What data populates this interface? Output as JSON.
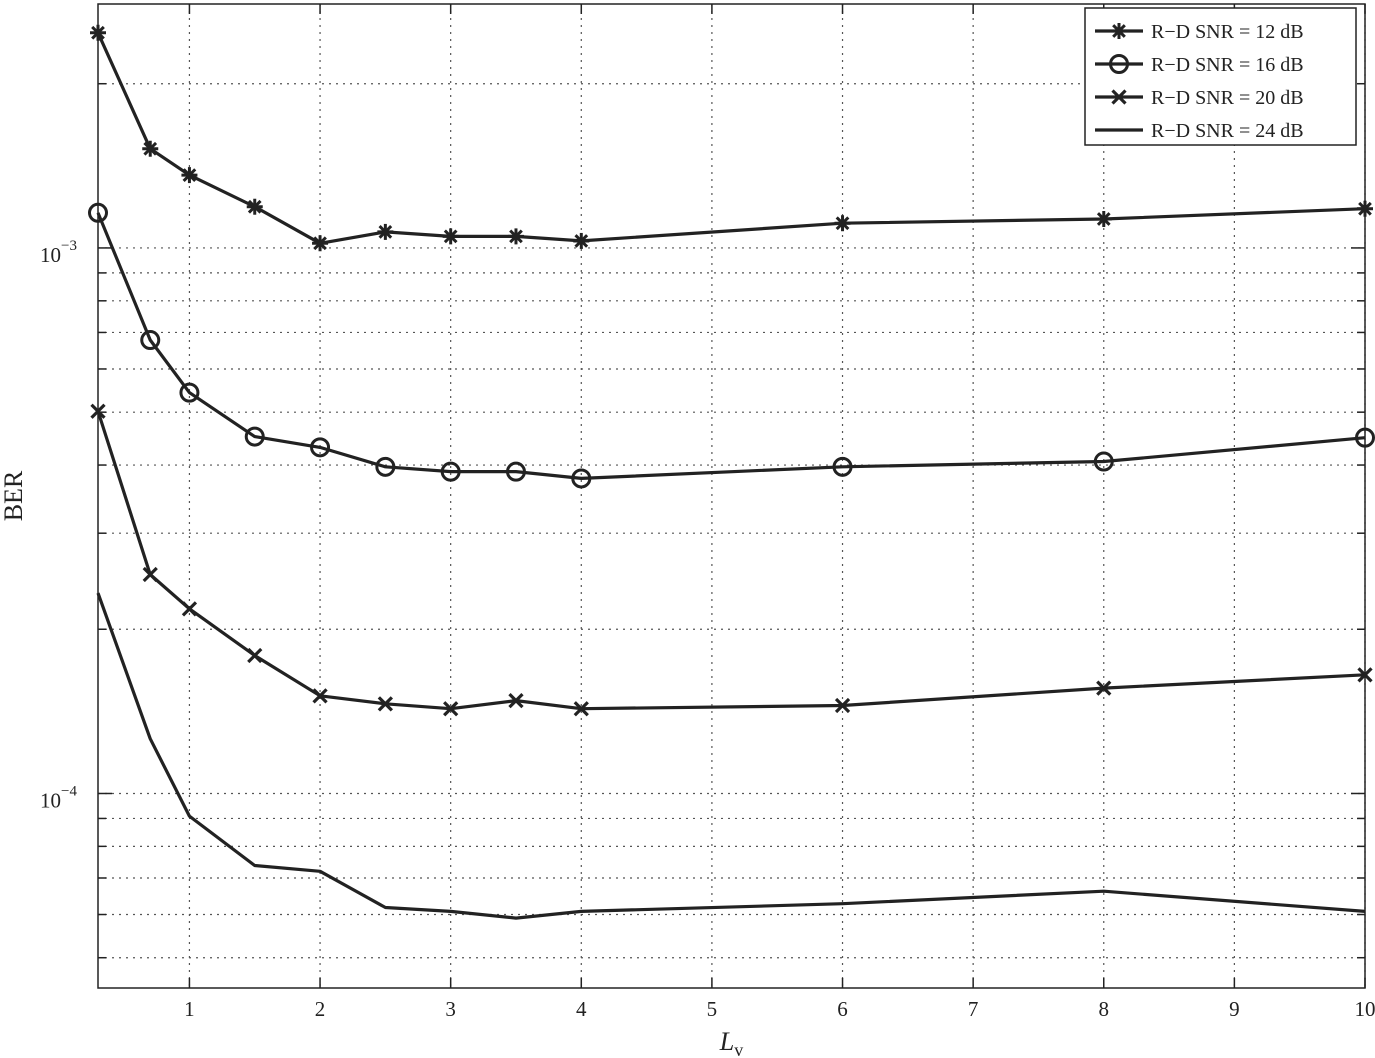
{
  "chart_data": {
    "type": "line",
    "xlabel": "L",
    "xlabel_sub": "v",
    "ylabel": "BER",
    "yscale": "log",
    "xlim": [
      0.3,
      10
    ],
    "ylim": [
      4.4e-05,
      0.0028
    ],
    "xticks": [
      1,
      2,
      3,
      4,
      5,
      6,
      7,
      8,
      9,
      10
    ],
    "ytick_labels": [
      {
        "value": 0.001,
        "base": "10",
        "exp": "−3"
      },
      {
        "value": 0.0001,
        "base": "10",
        "exp": "−4"
      }
    ],
    "grid": true,
    "grid_style": "dotted",
    "legend_position": "top-right",
    "series": [
      {
        "name": "R−D SNR = 12 dB",
        "marker": "asterisk",
        "x": [
          0.3,
          0.7,
          1,
          1.5,
          2,
          2.5,
          3,
          3.5,
          4,
          6,
          8,
          10
        ],
        "y": [
          0.00248,
          0.00152,
          0.00136,
          0.00119,
          0.00102,
          0.00107,
          0.00105,
          0.00105,
          0.00103,
          0.00111,
          0.00113,
          0.00118
        ]
      },
      {
        "name": "R−D SNR = 16 dB",
        "marker": "circle",
        "x": [
          0.3,
          0.7,
          1,
          1.5,
          2,
          2.5,
          3,
          3.5,
          4,
          6,
          8,
          10
        ],
        "y": [
          0.00116,
          0.000678,
          0.000543,
          0.000451,
          0.000431,
          0.000397,
          0.000389,
          0.000389,
          0.000378,
          0.000397,
          0.000406,
          0.000449
        ]
      },
      {
        "name": "R−D SNR = 20 dB",
        "marker": "x",
        "x": [
          0.3,
          0.7,
          1,
          1.5,
          2,
          2.5,
          3,
          3.5,
          4,
          6,
          8,
          10
        ],
        "y": [
          0.000502,
          0.000252,
          0.000218,
          0.000179,
          0.000151,
          0.000146,
          0.000143,
          0.000148,
          0.000143,
          0.000145,
          0.000156,
          0.000165
        ]
      },
      {
        "name": "R−D SNR = 24 dB",
        "marker": "none",
        "x": [
          0.3,
          0.7,
          1,
          1.5,
          2,
          2.5,
          3,
          3.5,
          4,
          6,
          8,
          10
        ],
        "y": [
          0.000233,
          0.000126,
          9.09e-05,
          7.38e-05,
          7.2e-05,
          6.18e-05,
          6.08e-05,
          5.91e-05,
          6.08e-05,
          6.28e-05,
          6.62e-05,
          6.08e-05
        ]
      }
    ]
  }
}
